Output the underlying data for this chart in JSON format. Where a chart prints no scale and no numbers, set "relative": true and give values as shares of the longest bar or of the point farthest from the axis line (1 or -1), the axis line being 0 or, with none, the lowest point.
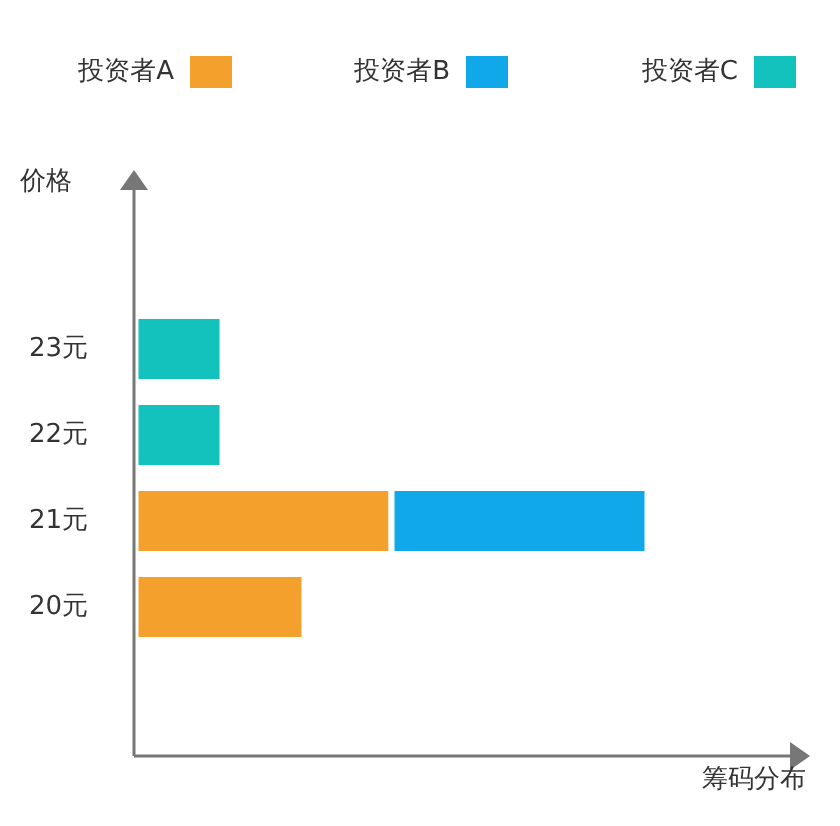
{
  "chart_data": {
    "type": "bar",
    "orientation": "horizontal",
    "stacked": true,
    "relative": true,
    "legend": "top",
    "xlabel": "筹码分布",
    "ylabel": "价格",
    "categories": [
      "23元",
      "22元",
      "21元",
      "20元"
    ],
    "series": [
      {
        "name": "投资者A",
        "color": "#f4a02c",
        "values": [
          null,
          null,
          0.5,
          0.33
        ]
      },
      {
        "name": "投资者B",
        "color": "#10a8e8",
        "values": [
          null,
          null,
          0.5,
          null
        ]
      },
      {
        "name": "投资者C",
        "color": "#13c1bd",
        "values": [
          0.17,
          0.17,
          null,
          null
        ]
      }
    ]
  }
}
